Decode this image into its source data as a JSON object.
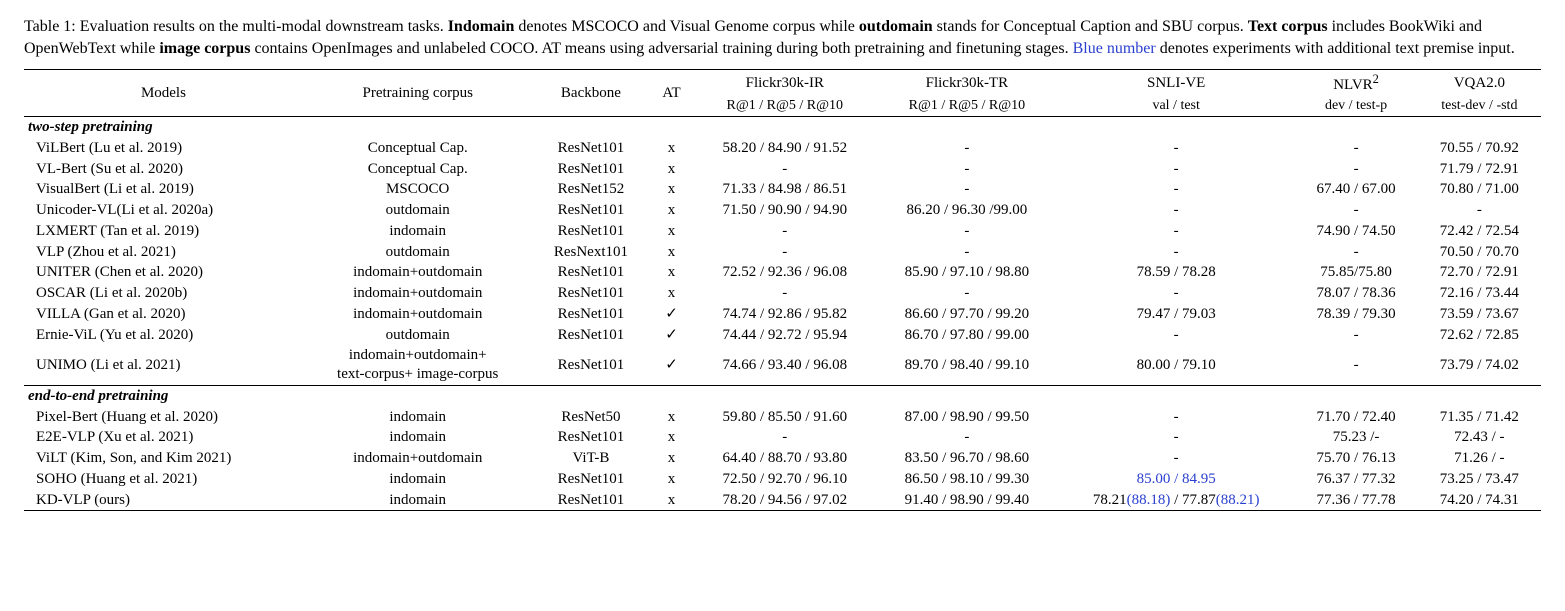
{
  "caption": {
    "lead": "Table 1:",
    "t1a": " Evaluation results on the multi-modal downstream tasks. ",
    "t1b": "Indomain",
    "t1c": " denotes MSCOCO and Visual Genome corpus while ",
    "t1d": "outdomain",
    "t2a": " stands for Conceptual Caption and SBU corpus. ",
    "t2b": "Text corpus",
    "t2c": " includes BookWiki and OpenWebText while ",
    "t2d": "image corpus",
    "t2e": " contains OpenImages and unlabeled COCO. AT means using adversarial training during both pretraining and finetuning stages. ",
    "t2f": "Blue number",
    "t2g": " denotes experiments with additional text premise input."
  },
  "head": {
    "models": "Models",
    "pretrain": "Pretraining corpus",
    "backbone": "Backbone",
    "at": "AT",
    "f_ir": "Flickr30k-IR",
    "f_ir_sub": "R@1 / R@5 / R@10",
    "f_tr": "Flickr30k-TR",
    "f_tr_sub": "R@1 / R@5 / R@10",
    "snli": "SNLI-VE",
    "snli_sub": "val / test",
    "nlvr": "NLVR",
    "nlvr_sup": "2",
    "nlvr_sub": "dev / test-p",
    "vqa": "VQA2.0",
    "vqa_sub": "test-dev / -std"
  },
  "sections": {
    "twostep": "two-step pretraining",
    "e2e": "end-to-end pretraining"
  },
  "rows": {
    "r1": {
      "model": "ViLBert (Lu et al. 2019)",
      "corpus": "Conceptual Cap.",
      "backbone": "ResNet101",
      "at": "x",
      "fir": "58.20 / 84.90 / 91.52",
      "ftr": "-",
      "snli": "-",
      "nlvr": "-",
      "vqa": "70.55 / 70.92"
    },
    "r2": {
      "model": "VL-Bert (Su et al. 2020)",
      "corpus": "Conceptual Cap.",
      "backbone": "ResNet101",
      "at": "x",
      "fir": "-",
      "ftr": "-",
      "snli": "-",
      "nlvr": "-",
      "vqa": "71.79 / 72.91"
    },
    "r3": {
      "model": "VisualBert (Li et al. 2019)",
      "corpus": "MSCOCO",
      "backbone": "ResNet152",
      "at": "x",
      "fir": "71.33 / 84.98 / 86.51",
      "ftr": "-",
      "snli": "-",
      "nlvr": "67.40 / 67.00",
      "vqa": "70.80 / 71.00"
    },
    "r4": {
      "model": "Unicoder-VL(Li et al. 2020a)",
      "corpus": "outdomain",
      "backbone": "ResNet101",
      "at": "x",
      "fir": "71.50 / 90.90 / 94.90",
      "ftr": "86.20 / 96.30 /99.00",
      "snli": "-",
      "nlvr": "-",
      "vqa": "-"
    },
    "r5": {
      "model": "LXMERT (Tan et al. 2019)",
      "corpus": "indomain",
      "backbone": "ResNet101",
      "at": "x",
      "fir": "-",
      "ftr": "-",
      "snli": "-",
      "nlvr": "74.90 / 74.50",
      "vqa": "72.42 / 72.54"
    },
    "r6": {
      "model": "VLP (Zhou et al. 2021)",
      "corpus": "outdomain",
      "backbone": "ResNext101",
      "at": "x",
      "fir": "-",
      "ftr": "-",
      "snli": "-",
      "nlvr": "-",
      "vqa": "70.50 / 70.70"
    },
    "r7": {
      "model": "UNITER (Chen et al. 2020)",
      "corpus": "indomain+outdomain",
      "backbone": "ResNet101",
      "at": "x",
      "fir": "72.52 / 92.36 / 96.08",
      "ftr": "85.90 / 97.10 / 98.80",
      "snli": "78.59 / 78.28",
      "nlvr": "75.85/75.80",
      "vqa": "72.70 / 72.91"
    },
    "r8": {
      "model": "OSCAR (Li et al. 2020b)",
      "corpus": "indomain+outdomain",
      "backbone": "ResNet101",
      "at": "x",
      "fir": "-",
      "ftr": "-",
      "snli": "-",
      "nlvr": "78.07 / 78.36",
      "vqa": "72.16 / 73.44"
    },
    "r9": {
      "model": "VILLA (Gan et al. 2020)",
      "corpus": "indomain+outdomain",
      "backbone": "ResNet101",
      "at": "✓",
      "fir": "74.74 / 92.86 / 95.82",
      "ftr": "86.60 / 97.70 / 99.20",
      "snli": "79.47 / 79.03",
      "nlvr": "78.39 / 79.30",
      "vqa": "73.59 / 73.67"
    },
    "r10": {
      "model": "Ernie-ViL (Yu et al. 2020)",
      "corpus": "outdomain",
      "backbone": "ResNet101",
      "at": "✓",
      "fir": "74.44 / 92.72 / 95.94",
      "ftr": "86.70 / 97.80 / 99.00",
      "snli": "-",
      "nlvr": "-",
      "vqa": "72.62 / 72.85"
    },
    "r11": {
      "model": "UNIMO (Li et al. 2021)",
      "corpus_l1": "indomain+outdomain+",
      "corpus_l2": "text-corpus+ image-corpus",
      "backbone": "ResNet101",
      "at": "✓",
      "fir": "74.66 / 93.40 / 96.08",
      "ftr": "89.70 / 98.40 / 99.10",
      "snli": "80.00 / 79.10",
      "nlvr": "-",
      "vqa": "73.79 / 74.02"
    },
    "r12": {
      "model": "Pixel-Bert (Huang et al. 2020)",
      "corpus": "indomain",
      "backbone": "ResNet50",
      "at": "x",
      "fir": "59.80 / 85.50 / 91.60",
      "ftr": "87.00 / 98.90 / 99.50",
      "snli": "-",
      "nlvr": "71.70 / 72.40",
      "vqa": "71.35 / 71.42"
    },
    "r13": {
      "model": "E2E-VLP (Xu et al. 2021)",
      "corpus": "indomain",
      "backbone": "ResNet101",
      "at": "x",
      "fir": "-",
      "ftr": "-",
      "snli": "-",
      "nlvr": "75.23 /-",
      "vqa": "72.43 / -"
    },
    "r14": {
      "model": "ViLT (Kim, Son, and Kim 2021)",
      "corpus": "indomain+outdomain",
      "backbone": "ViT-B",
      "at": "x",
      "fir": "64.40 / 88.70 / 93.80",
      "ftr": "83.50 / 96.70 / 98.60",
      "snli": "-",
      "nlvr": "75.70 / 76.13",
      "vqa": "71.26 / -"
    },
    "r15": {
      "model": "SOHO  (Huang et al. 2021)",
      "corpus": "indomain",
      "backbone": "ResNet101",
      "at": "x",
      "fir": "72.50 / 92.70 / 96.10",
      "ftr": "86.50 / 98.10 / 99.30",
      "snli_blue": "85.00 / 84.95",
      "nlvr": "76.37 / 77.32",
      "vqa": "73.25 / 73.47"
    },
    "r16": {
      "model": "KD-VLP (ours)",
      "corpus": "indomain",
      "backbone": "ResNet101",
      "at": "x",
      "fir": "78.20 / 94.56 / 97.02",
      "ftr": "91.40 / 98.90 / 99.40",
      "snli_a": "78.21",
      "snli_b": "(88.18)",
      "snli_c": " / 77.87",
      "snli_d": "(88.21)",
      "nlvr": "77.36 / 77.78",
      "vqa": "74.20 / 74.31"
    }
  }
}
